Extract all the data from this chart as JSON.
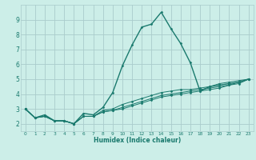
{
  "xlabel": "Humidex (Indice chaleur)",
  "bg_color": "#cceee8",
  "grid_color": "#aacccc",
  "line_color": "#1a7a6e",
  "xlim": [
    -0.5,
    23.5
  ],
  "ylim": [
    1.5,
    10.0
  ],
  "xtick_labels": [
    "0",
    "1",
    "2",
    "3",
    "4",
    "5",
    "6",
    "7",
    "8",
    "9",
    "10",
    "11",
    "12",
    "13",
    "14",
    "15",
    "16",
    "17",
    "18",
    "19",
    "20",
    "21",
    "22",
    "23"
  ],
  "xtick_pos": [
    0,
    1,
    2,
    3,
    4,
    5,
    6,
    7,
    8,
    9,
    10,
    11,
    12,
    13,
    14,
    15,
    16,
    17,
    18,
    19,
    20,
    21,
    22,
    23
  ],
  "ytick_pos": [
    2,
    3,
    4,
    5,
    6,
    7,
    8,
    9
  ],
  "ytick_labels": [
    "2",
    "3",
    "4",
    "5",
    "6",
    "7",
    "8",
    "9"
  ],
  "lines": [
    {
      "x": [
        0,
        1,
        2,
        3,
        4,
        5,
        6,
        7,
        8,
        9,
        10,
        11,
        12,
        13,
        14,
        15,
        16,
        17,
        18,
        19,
        20,
        21,
        22,
        23
      ],
      "y": [
        3.0,
        2.4,
        2.6,
        2.2,
        2.2,
        2.0,
        2.7,
        2.6,
        3.1,
        4.1,
        5.9,
        7.3,
        8.5,
        8.7,
        9.5,
        8.4,
        7.4,
        6.1,
        4.2,
        4.5,
        4.6,
        4.7,
        4.8,
        5.0
      ]
    },
    {
      "x": [
        0,
        1,
        2,
        3,
        4,
        5,
        6,
        7,
        8,
        9,
        10,
        11,
        12,
        13,
        14,
        15,
        16,
        17,
        18,
        19,
        20,
        21,
        22,
        23
      ],
      "y": [
        3.0,
        2.4,
        2.5,
        2.2,
        2.2,
        2.0,
        2.5,
        2.5,
        2.9,
        3.0,
        3.3,
        3.5,
        3.7,
        3.9,
        4.1,
        4.2,
        4.3,
        4.3,
        4.4,
        4.5,
        4.7,
        4.8,
        4.9,
        5.0
      ]
    },
    {
      "x": [
        0,
        1,
        2,
        3,
        4,
        5,
        6,
        7,
        8,
        9,
        10,
        11,
        12,
        13,
        14,
        15,
        16,
        17,
        18,
        19,
        20,
        21,
        22,
        23
      ],
      "y": [
        3.0,
        2.4,
        2.5,
        2.2,
        2.2,
        2.0,
        2.5,
        2.5,
        2.8,
        2.9,
        3.1,
        3.3,
        3.5,
        3.7,
        3.9,
        4.0,
        4.1,
        4.2,
        4.3,
        4.4,
        4.5,
        4.6,
        4.8,
        5.0
      ]
    },
    {
      "x": [
        0,
        1,
        2,
        3,
        4,
        5,
        6,
        7,
        8,
        9,
        10,
        11,
        12,
        13,
        14,
        15,
        16,
        17,
        18,
        19,
        20,
        21,
        22,
        23
      ],
      "y": [
        3.0,
        2.4,
        2.5,
        2.2,
        2.2,
        2.0,
        2.5,
        2.5,
        2.8,
        2.9,
        3.0,
        3.2,
        3.4,
        3.6,
        3.8,
        3.9,
        4.0,
        4.1,
        4.2,
        4.3,
        4.4,
        4.6,
        4.7,
        5.0
      ]
    }
  ]
}
